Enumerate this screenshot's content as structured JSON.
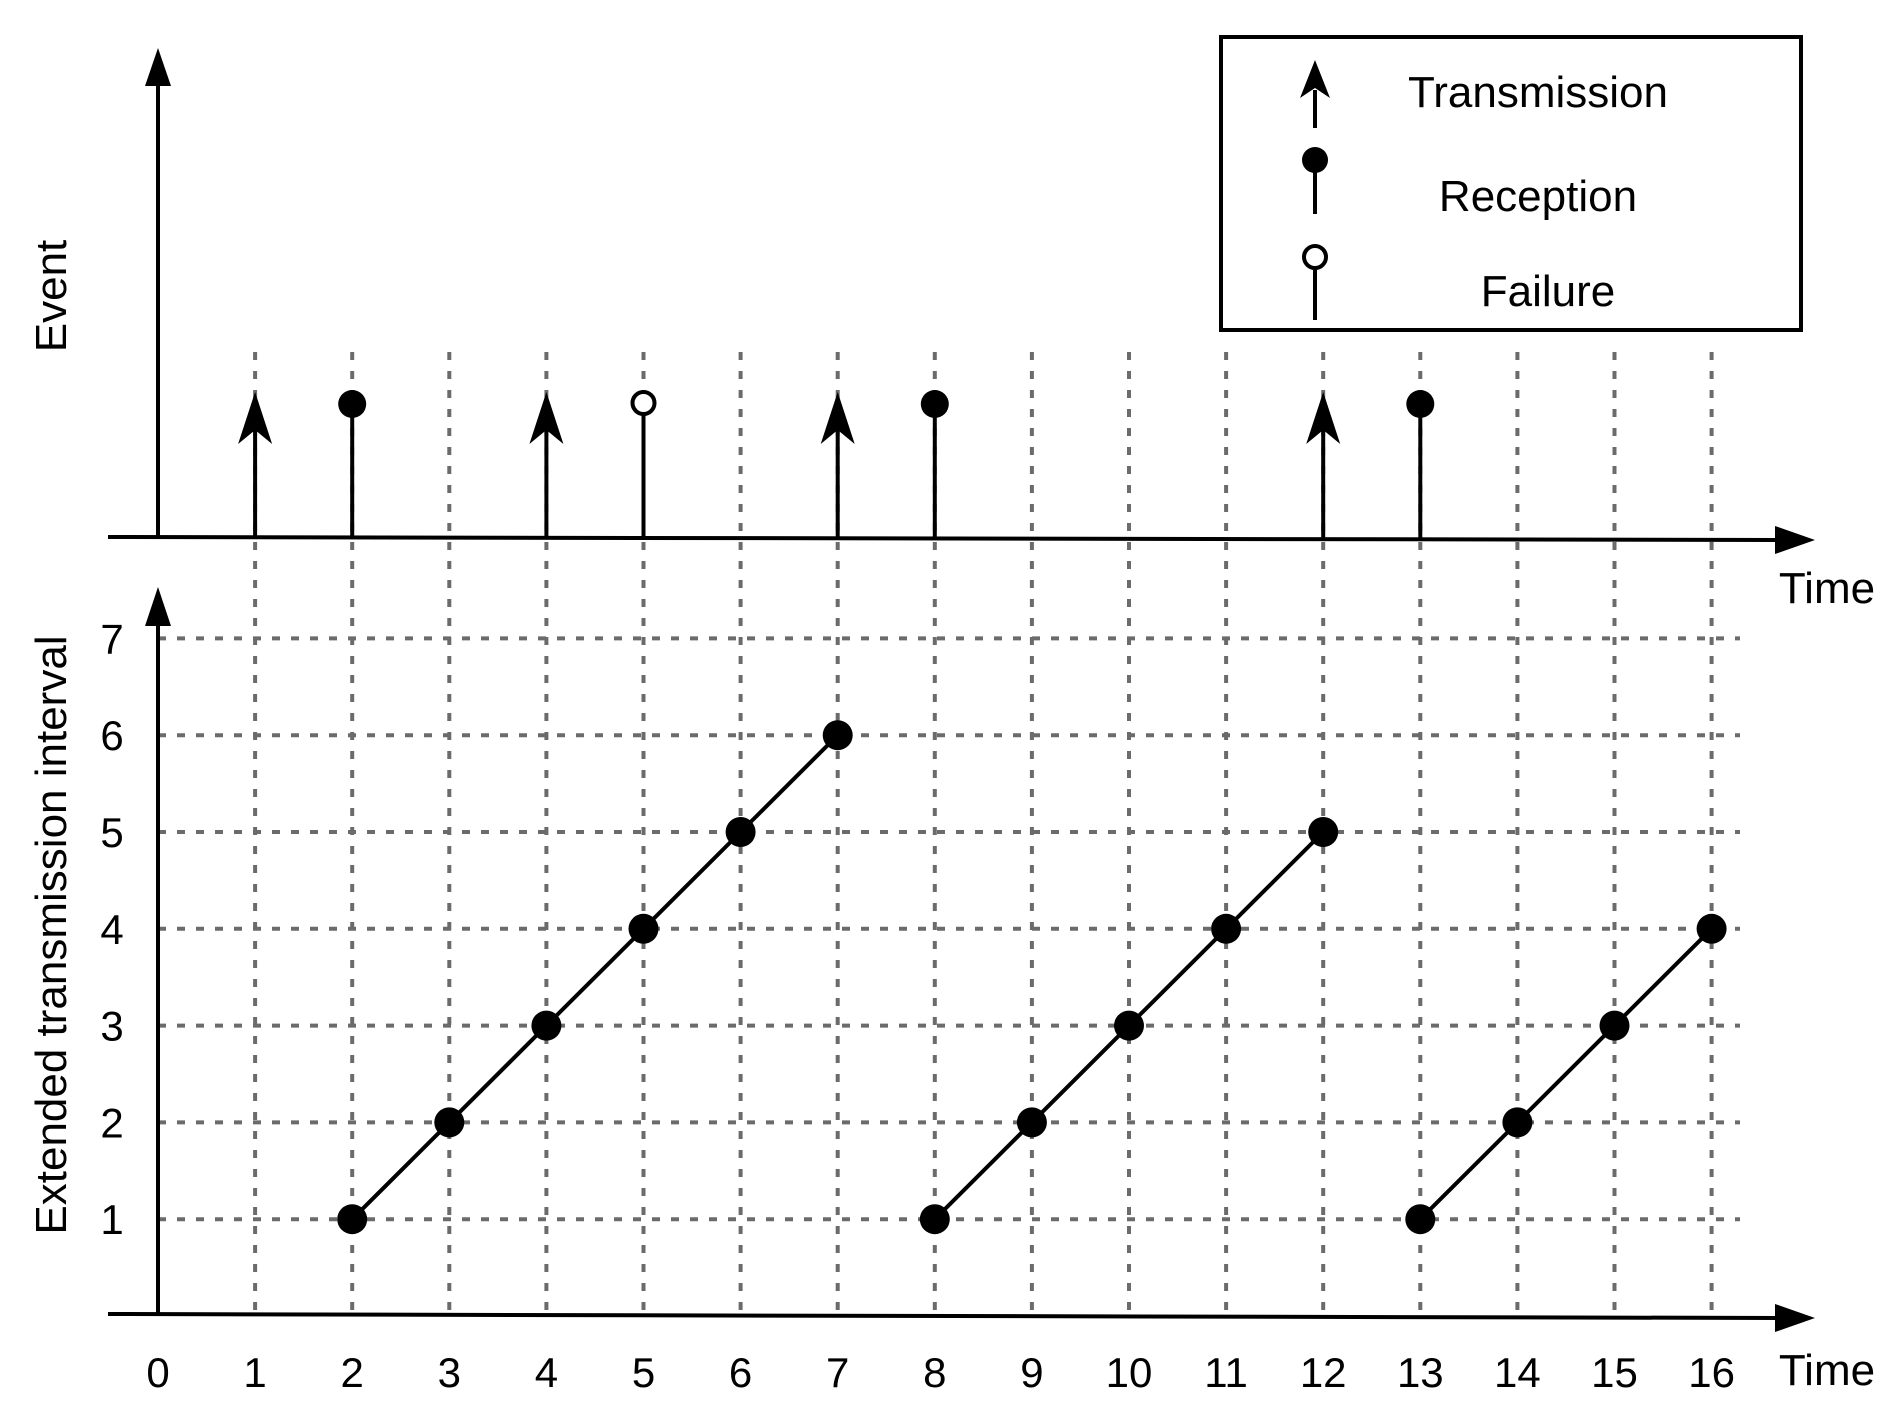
{
  "chart_data": [
    {
      "type": "event-timeline",
      "ylabel": "Event",
      "xlabel": "Time",
      "legend": {
        "placement": "top-right",
        "entries": [
          {
            "kind": "transmission",
            "label": "Transmission"
          },
          {
            "kind": "reception",
            "label": "Reception"
          },
          {
            "kind": "failure",
            "label": "Failure"
          }
        ]
      },
      "events": [
        {
          "t": 1,
          "kind": "transmission"
        },
        {
          "t": 2,
          "kind": "reception"
        },
        {
          "t": 4,
          "kind": "transmission"
        },
        {
          "t": 5,
          "kind": "failure"
        },
        {
          "t": 7,
          "kind": "transmission"
        },
        {
          "t": 8,
          "kind": "reception"
        },
        {
          "t": 12,
          "kind": "transmission"
        },
        {
          "t": 13,
          "kind": "reception"
        }
      ]
    },
    {
      "type": "line",
      "ylabel": "Extended transmission interval",
      "xlabel": "Time",
      "xlim": [
        0,
        16
      ],
      "ylim": [
        0,
        7
      ],
      "grid": true,
      "x_ticks": [
        "0",
        "1",
        "2",
        "3",
        "4",
        "5",
        "6",
        "7",
        "8",
        "9",
        "10",
        "11",
        "12",
        "13",
        "14",
        "15",
        "16"
      ],
      "y_ticks": [
        "1",
        "2",
        "3",
        "4",
        "5",
        "6",
        "7"
      ],
      "segments": [
        {
          "x": [
            2,
            3,
            4,
            5,
            6,
            7
          ],
          "y": [
            1,
            2,
            3,
            4,
            5,
            6
          ]
        },
        {
          "x": [
            8,
            9,
            10,
            11,
            12
          ],
          "y": [
            1,
            2,
            3,
            4,
            5
          ]
        },
        {
          "x": [
            13,
            14,
            15,
            16
          ],
          "y": [
            1,
            2,
            3,
            4
          ]
        }
      ]
    }
  ]
}
